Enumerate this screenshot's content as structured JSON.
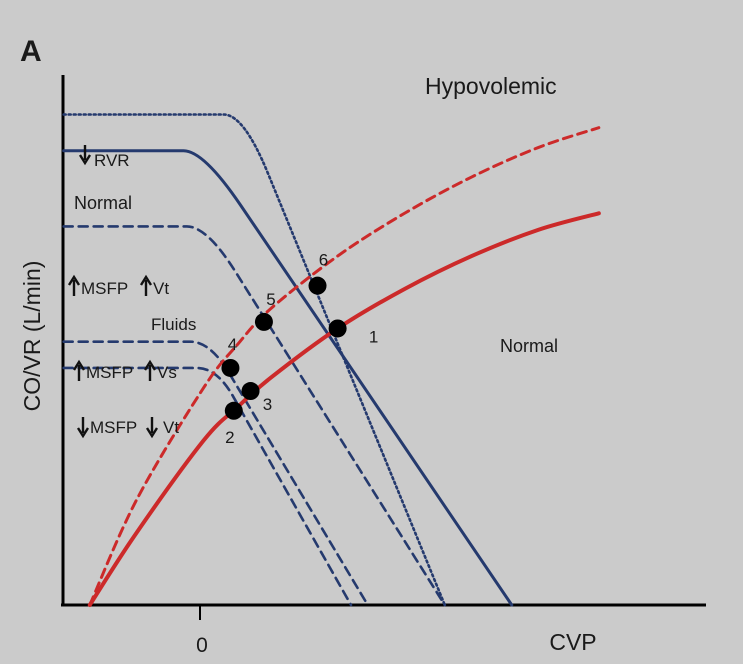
{
  "chart_data": {
    "type": "line",
    "panel_label": "A",
    "title": "Hypovolemic",
    "xlabel": "CVP",
    "ylabel": "CO/VR (L/min)",
    "x_ticks": [
      "0"
    ],
    "xlim": [
      -2.1,
      7.5
    ],
    "ylim": [
      0,
      8.05
    ],
    "colors": {
      "venous_return": "#253a6e",
      "cardiac_function": "#cc2a2a",
      "points": "#000000"
    },
    "venous_return_curves": [
      {
        "name": "RVR",
        "label": "RVR",
        "arrow": "down",
        "style": "dotted",
        "plateau": 7.45,
        "x_knee": 0.6,
        "x_zero": 3.6
      },
      {
        "name": "Normal",
        "label": "Normal",
        "style": "solid",
        "plateau": 6.9,
        "x_knee": 0.0,
        "x_zero": 4.6
      },
      {
        "name": "MSFP Vt",
        "label": "MSFP",
        "label2": "Vt",
        "arrow": "up",
        "style": "dashed",
        "plateau": 5.75,
        "x_knee": 0.05,
        "x_zero": 3.6
      },
      {
        "name": "Fluids",
        "label": "Fluids",
        "style": "none"
      },
      {
        "name": "MSFP Vs",
        "label": "MSFP",
        "label2": "Vs",
        "arrow": "up",
        "style": "dashed",
        "plateau": 4.0,
        "x_knee": 0.1,
        "x_zero": 2.45
      },
      {
        "name": "MSFP Vt decreased",
        "label": "MSFP",
        "label2": "Vt",
        "arrow": "down",
        "style": "dashed",
        "plateau": 3.6,
        "x_knee": 0.2,
        "x_zero": 2.2
      }
    ],
    "cardiac_function_curves": [
      {
        "name": "Normal",
        "label": "Normal",
        "style": "solid",
        "x": [
          -1.7,
          -1.0,
          0.0,
          0.5,
          1.0,
          2.0,
          3.0,
          4.0,
          5.0,
          5.9
        ],
        "y": [
          0.0,
          1.1,
          2.5,
          3.0,
          3.45,
          4.2,
          4.8,
          5.3,
          5.7,
          5.95
        ]
      },
      {
        "name": "Fluids",
        "style": "dashed",
        "x": [
          -1.7,
          -1.0,
          0.0,
          0.5,
          1.0,
          2.0,
          3.0,
          4.0,
          5.0,
          5.9
        ],
        "y": [
          0.0,
          1.6,
          3.3,
          3.95,
          4.5,
          5.3,
          5.95,
          6.5,
          6.95,
          7.25
        ]
      }
    ],
    "points": [
      {
        "label": "1",
        "x": 2.0,
        "y": 4.2
      },
      {
        "label": "2",
        "x": 0.45,
        "y": 2.95
      },
      {
        "label": "3",
        "x": 0.7,
        "y": 3.25
      },
      {
        "label": "4",
        "x": 0.4,
        "y": 3.6
      },
      {
        "label": "5",
        "x": 0.9,
        "y": 4.3
      },
      {
        "label": "6",
        "x": 1.7,
        "y": 4.85
      }
    ]
  }
}
